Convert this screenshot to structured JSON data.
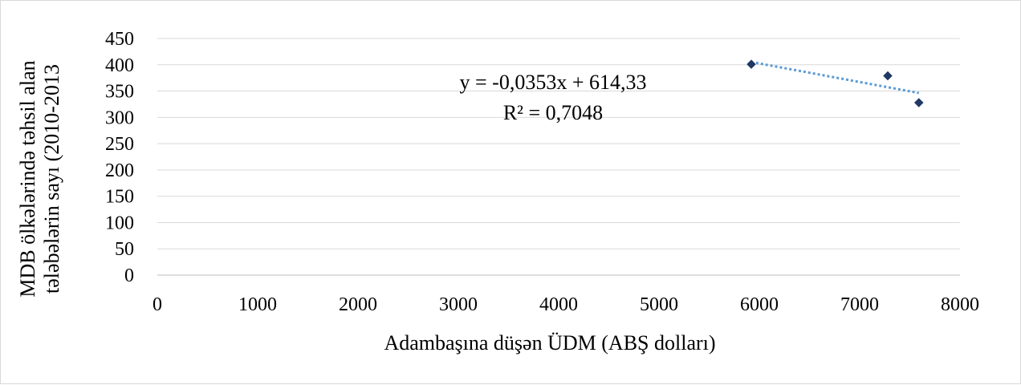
{
  "chart_data": {
    "type": "scatter",
    "xlabel": "Adambaşına düşən ÜDM (ABŞ dolları)",
    "ylabel_lines": [
      "MDB ölkələrində təhsil alan",
      "tələbələrin sayı (2010-2013"
    ],
    "xlim": [
      0,
      8000
    ],
    "ylim": [
      0,
      450
    ],
    "xticks": [
      0,
      1000,
      2000,
      3000,
      4000,
      5000,
      6000,
      7000,
      8000
    ],
    "yticks": [
      0,
      50,
      100,
      150,
      200,
      250,
      300,
      350,
      400,
      450
    ],
    "grid": "horizontal",
    "points": [
      {
        "x": 5920,
        "y": 401
      },
      {
        "x": 7280,
        "y": 379
      },
      {
        "x": 7590,
        "y": 328
      }
    ],
    "trendline": {
      "type": "linear",
      "slope": -0.0353,
      "intercept": 614.33
    },
    "annotation": {
      "equation": "y = -0,0353x + 614,33",
      "r_squared": "R² = 0,7048"
    },
    "colors": {
      "marker": "#1f3864",
      "trendline": "#5b9bd5",
      "grid": "#d9d9d9",
      "axis": "#bfbfbf"
    }
  }
}
